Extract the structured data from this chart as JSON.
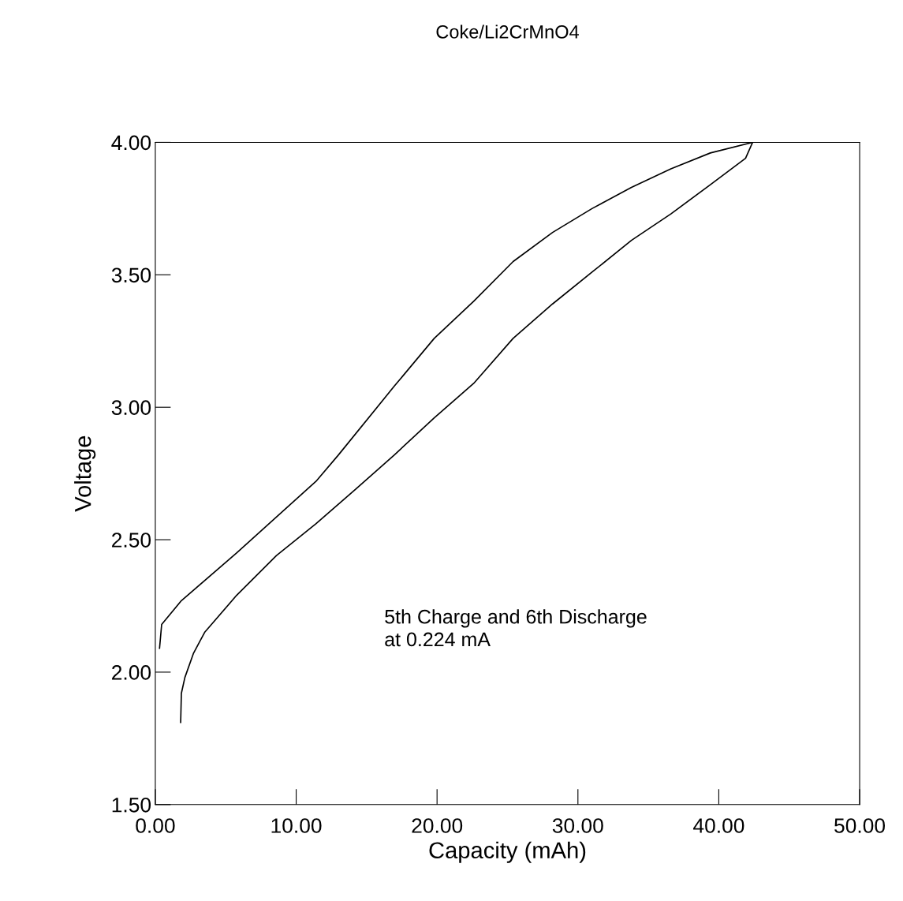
{
  "chart_data": {
    "type": "line",
    "title": "Coke/Li2CrMnO4",
    "xlabel": "Capacity (mAh)",
    "ylabel": "Voltage",
    "xlim": [
      0,
      50
    ],
    "ylim": [
      1.5,
      4.0
    ],
    "xticks": [
      {
        "value": 0,
        "label": "0.00"
      },
      {
        "value": 10,
        "label": "10.00"
      },
      {
        "value": 20,
        "label": "20.00"
      },
      {
        "value": 30,
        "label": "30.00"
      },
      {
        "value": 40,
        "label": "40.00"
      },
      {
        "value": 50,
        "label": "50.00"
      }
    ],
    "yticks": [
      {
        "value": 1.5,
        "label": "1.50"
      },
      {
        "value": 2.0,
        "label": "2.00"
      },
      {
        "value": 2.5,
        "label": "2.50"
      },
      {
        "value": 3.0,
        "label": "3.00"
      },
      {
        "value": 3.5,
        "label": "3.50"
      },
      {
        "value": 4.0,
        "label": "4.00"
      }
    ],
    "grid": false,
    "marker": "none",
    "line_style": "solid",
    "annotations": [
      "5th Charge and 6th Discharge\nat 0.224 mA"
    ],
    "series": [
      {
        "color": "#000000",
        "x": [
          0.3,
          0.45,
          1.85,
          5.77,
          11.4,
          13.0,
          16.97,
          19.8,
          22.6,
          25.4,
          28.2,
          31.0,
          33.8,
          36.6,
          39.4,
          42.4
        ],
        "values": [
          2.09,
          2.18,
          2.27,
          2.45,
          2.72,
          2.82,
          3.08,
          3.26,
          3.4,
          3.55,
          3.66,
          3.75,
          3.83,
          3.9,
          3.96,
          4.0
        ]
      },
      {
        "color": "#000000",
        "x": [
          42.4,
          41.9,
          39.4,
          36.6,
          33.8,
          31.0,
          28.2,
          25.4,
          22.6,
          19.8,
          16.97,
          14.2,
          11.4,
          8.6,
          5.77,
          3.5,
          2.7,
          2.1,
          1.85,
          1.8
        ],
        "values": [
          4.0,
          3.94,
          3.84,
          3.73,
          3.63,
          3.51,
          3.39,
          3.26,
          3.09,
          2.96,
          2.82,
          2.69,
          2.56,
          2.44,
          2.29,
          2.15,
          2.07,
          1.98,
          1.92,
          1.81
        ]
      }
    ]
  }
}
